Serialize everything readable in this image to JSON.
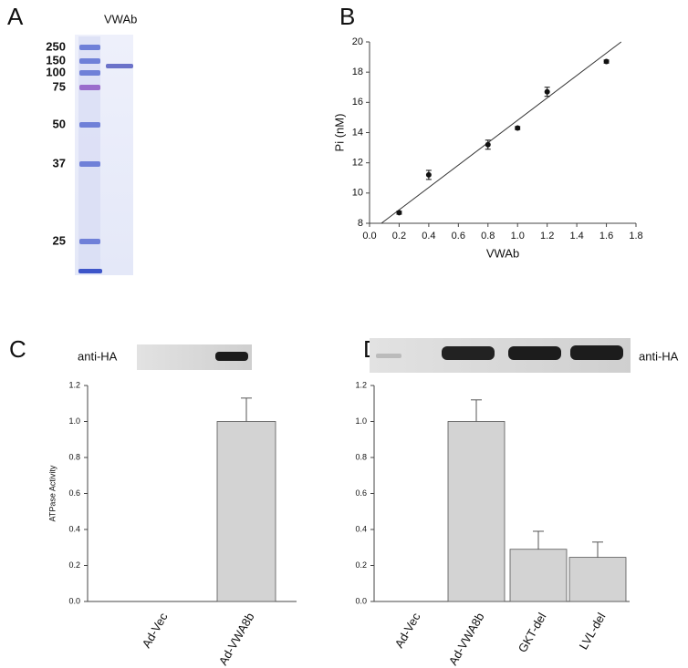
{
  "panel_labels": [
    "A",
    "B",
    "C",
    "D"
  ],
  "gel": {
    "lane_label": "VWAb",
    "markers": [
      "250",
      "150",
      "100",
      "75",
      "50",
      "37",
      "25"
    ]
  },
  "blot_label": "anti-HA",
  "chart_data": [
    {
      "type": "scatter",
      "xlabel": "VWAb",
      "ylabel": "Pi (nM)",
      "x": [
        0.2,
        0.4,
        0.8,
        1.0,
        1.2,
        1.6
      ],
      "values": [
        8.7,
        11.2,
        13.2,
        14.3,
        16.7,
        18.7
      ],
      "errors": [
        0.1,
        0.3,
        0.3,
        0.1,
        0.3,
        0.1
      ],
      "fit": {
        "x": [
          0.08,
          1.7
        ],
        "values": [
          8,
          20
        ]
      },
      "color": "#111111",
      "xlim": [
        0,
        1.8
      ],
      "ylim": [
        8,
        20
      ],
      "xticks": [
        {
          "value": 0,
          "label": "0.0"
        },
        {
          "value": 0.2,
          "label": "0.2"
        },
        {
          "value": 0.4,
          "label": "0.4"
        },
        {
          "value": 0.6,
          "label": "0.6"
        },
        {
          "value": 0.8,
          "label": "0.8"
        },
        {
          "value": 1.0,
          "label": "1.0"
        },
        {
          "value": 1.2,
          "label": "1.2"
        },
        {
          "value": 1.4,
          "label": "1.4"
        },
        {
          "value": 1.6,
          "label": "1.6"
        },
        {
          "value": 1.8,
          "label": "1.8"
        }
      ],
      "yticks": [
        8,
        10,
        12,
        14,
        16,
        18,
        20
      ]
    },
    {
      "type": "bar",
      "ylabel": "ATPase Activity",
      "categories": [
        "Ad-Vec",
        "Ad-VWA8b"
      ],
      "values": [
        0,
        1.0
      ],
      "errors": [
        0,
        0.13
      ],
      "color": "#d3d3d3",
      "ylim": [
        0,
        1.2
      ],
      "yticks": [
        {
          "value": 0,
          "label": "0.0"
        },
        {
          "value": 0.2,
          "label": "0.2"
        },
        {
          "value": 0.4,
          "label": "0.4"
        },
        {
          "value": 0.6,
          "label": "0.6"
        },
        {
          "value": 0.8,
          "label": "0.8"
        },
        {
          "value": 1.0,
          "label": "1.0"
        },
        {
          "value": 1.2,
          "label": "1.2"
        }
      ]
    },
    {
      "type": "bar",
      "categories": [
        "Ad-Vec",
        "Ad-VWA8b",
        "GKT-del",
        "LVL-del"
      ],
      "values": [
        0,
        1.0,
        0.29,
        0.245
      ],
      "errors": [
        0,
        0.12,
        0.1,
        0.085
      ],
      "color": "#d3d3d3",
      "ylim": [
        0,
        1.2
      ],
      "yticks": [
        {
          "value": 0,
          "label": "0.0"
        },
        {
          "value": 0.2,
          "label": "0.2"
        },
        {
          "value": 0.4,
          "label": "0.4"
        },
        {
          "value": 0.6,
          "label": "0.6"
        },
        {
          "value": 0.8,
          "label": "0.8"
        },
        {
          "value": 1.0,
          "label": "1.0"
        },
        {
          "value": 1.2,
          "label": "1.2"
        }
      ]
    }
  ]
}
